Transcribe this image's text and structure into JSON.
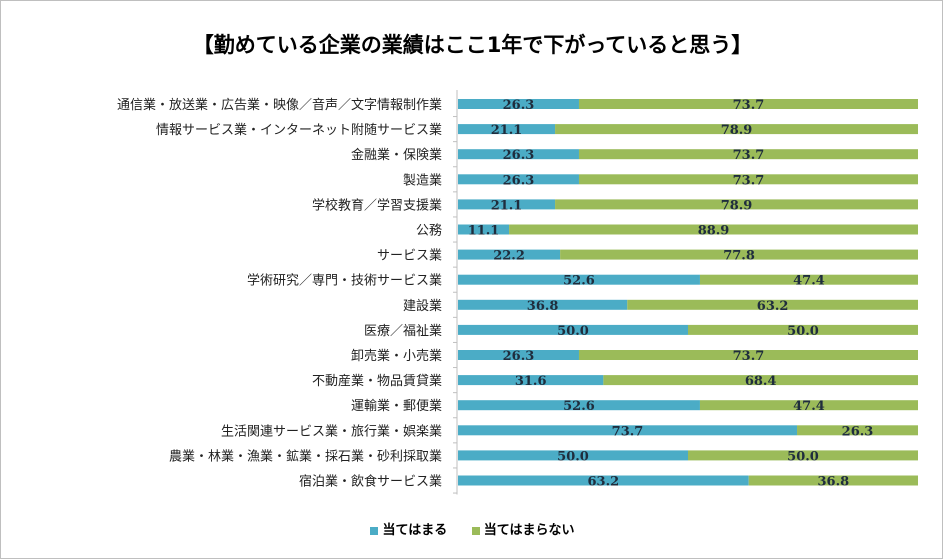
{
  "chart_data": {
    "type": "bar",
    "stacked": true,
    "orientation": "horizontal",
    "title": "【勤めている企業の業績はここ1年で下がっていると思う】",
    "categories": [
      "通信業・放送業・広告業・映像／音声／文字情報制作業",
      "情報サービス業・インターネット附随サービス業",
      "金融業・保険業",
      "製造業",
      "学校教育／学習支援業",
      "公務",
      "サービス業",
      "学術研究／専門・技術サービス業",
      "建設業",
      "医療／福祉業",
      "卸売業・小売業",
      "不動産業・物品賃貸業",
      "運輸業・郵便業",
      "生活関連サービス業・旅行業・娯楽業",
      "農業・林業・漁業・鉱業・採石業・砂利採取業",
      "宿泊業・飲食サービス業"
    ],
    "series": [
      {
        "name": "当てはまる",
        "color": "#4bacc6",
        "values": [
          26.3,
          21.1,
          26.3,
          26.3,
          21.1,
          11.1,
          22.2,
          52.6,
          36.8,
          50.0,
          26.3,
          31.6,
          52.6,
          73.7,
          50.0,
          63.2
        ]
      },
      {
        "name": "当てはまらない",
        "color": "#9bbb59",
        "values": [
          73.7,
          78.9,
          73.7,
          73.7,
          78.9,
          88.9,
          77.8,
          47.4,
          63.2,
          50.0,
          73.7,
          68.4,
          47.4,
          26.3,
          50.0,
          36.8
        ]
      }
    ],
    "xlim": [
      0,
      100
    ],
    "legend": "bottom"
  }
}
